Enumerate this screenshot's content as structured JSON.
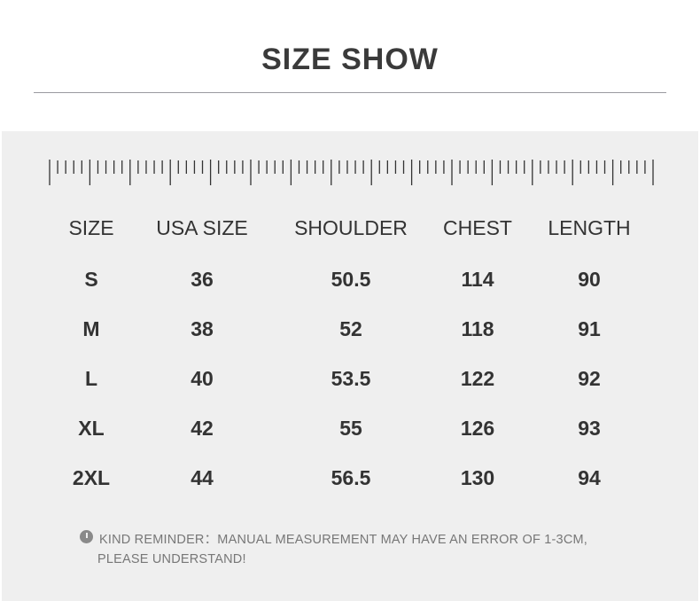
{
  "header": {
    "title": "SIZE SHOW"
  },
  "table": {
    "columns": [
      "SIZE",
      "USA SIZE",
      "SHOULDER",
      "CHEST",
      "LENGTH"
    ],
    "rows": [
      [
        "S",
        "36",
        "50.5",
        "114",
        "90"
      ],
      [
        "M",
        "38",
        "52",
        "118",
        "91"
      ],
      [
        "L",
        "40",
        "53.5",
        "122",
        "92"
      ],
      [
        "XL",
        "42",
        "55",
        "126",
        "93"
      ],
      [
        "2XL",
        "44",
        "56.5",
        "130",
        "94"
      ]
    ]
  },
  "reminder": {
    "lines": [
      "KIND REMINDER：MANUAL MEASUREMENT MAY HAVE AN ERROR OF 1-3CM,",
      "PLEASE UNDERSTAND!"
    ]
  }
}
